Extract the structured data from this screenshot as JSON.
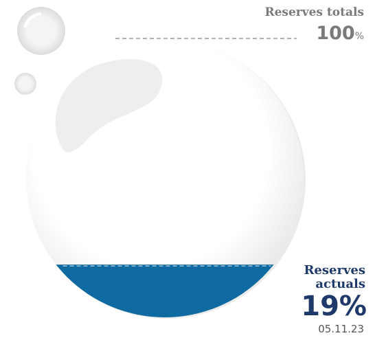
{
  "chart_data": {
    "type": "gauge",
    "total_label": "Reserves totals",
    "total": 100,
    "unit": "%",
    "current_label": "Reserves actuals",
    "value": 19,
    "date": "05.11.23",
    "color": "#0e6aa0"
  }
}
